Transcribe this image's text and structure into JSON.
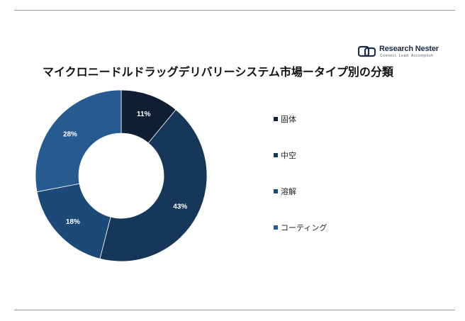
{
  "brand": {
    "name": "Research Nester",
    "tagline": "Connect. Lead. Accomplish"
  },
  "chart_data": {
    "type": "pie",
    "title": "マイクロニードルドラッグデリバリーシステム市場ータイプ別の分類",
    "donut": true,
    "legend_position": "right",
    "categories": [
      "固体",
      "中空",
      "溶解",
      "コーティング"
    ],
    "values": [
      11,
      43,
      18,
      28
    ],
    "value_labels": [
      "11%",
      "43%",
      "18%",
      "28%"
    ],
    "colors": [
      "#0f1e33",
      "#16365a",
      "#1b4a78",
      "#255b91"
    ],
    "label_color": "#ffffff"
  }
}
